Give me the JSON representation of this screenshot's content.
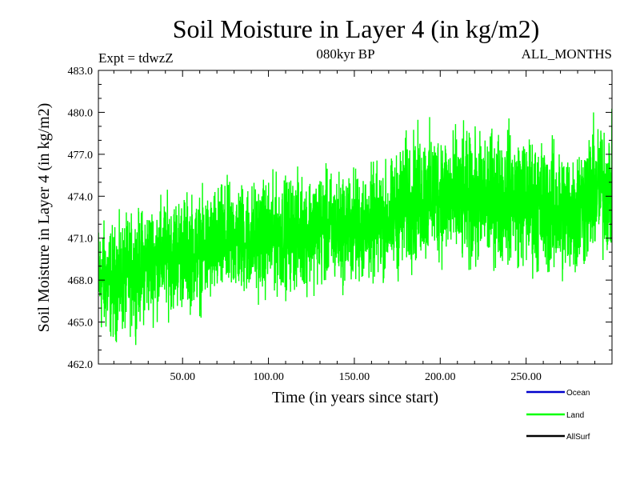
{
  "chart_data": {
    "type": "line",
    "title": "Soil Moisture in Layer 4 (in kg/m2)",
    "subtitle_left": "Expt = tdwzZ",
    "subtitle_center": "080kyr BP",
    "subtitle_right": "ALL_MONTHS",
    "xlabel": "Time (in years since start)",
    "ylabel": "Soil Moisture in Layer 4 (in kg/m2)",
    "xlim": [
      1,
      300
    ],
    "ylim": [
      462.0,
      483.0
    ],
    "x_ticks": [
      50,
      100,
      150,
      200,
      250
    ],
    "x_tick_labels": [
      "50.00",
      "100.00",
      "150.00",
      "200.00",
      "250.00"
    ],
    "y_ticks": [
      462,
      465,
      468,
      471,
      474,
      477,
      480,
      483
    ],
    "y_tick_labels": [
      "462.0",
      "465.0",
      "468.0",
      "471.0",
      "474.0",
      "477.0",
      "480.0",
      "483.0"
    ],
    "legend_position": "bottom-right",
    "series": [
      {
        "name": "Ocean",
        "color": "#0000cc",
        "values": []
      },
      {
        "name": "Land",
        "color": "#00ff00",
        "x": [
          1,
          10,
          20,
          30,
          40,
          50,
          60,
          70,
          80,
          90,
          100,
          110,
          120,
          130,
          140,
          150,
          160,
          170,
          180,
          190,
          200,
          210,
          220,
          230,
          240,
          250,
          260,
          270,
          280,
          290,
          300
        ],
        "values": [
          468.2,
          467.8,
          468.5,
          469.3,
          469.8,
          470.1,
          470.0,
          470.5,
          471.0,
          470.9,
          471.1,
          471.3,
          471.5,
          471.7,
          471.6,
          471.8,
          471.9,
          472.3,
          473.5,
          474.0,
          474.2,
          473.8,
          473.5,
          473.9,
          474.1,
          473.6,
          473.2,
          472.8,
          473.0,
          474.5,
          474.5
        ]
      },
      {
        "name": "AllSurf",
        "color": "#000000",
        "values": []
      }
    ]
  }
}
